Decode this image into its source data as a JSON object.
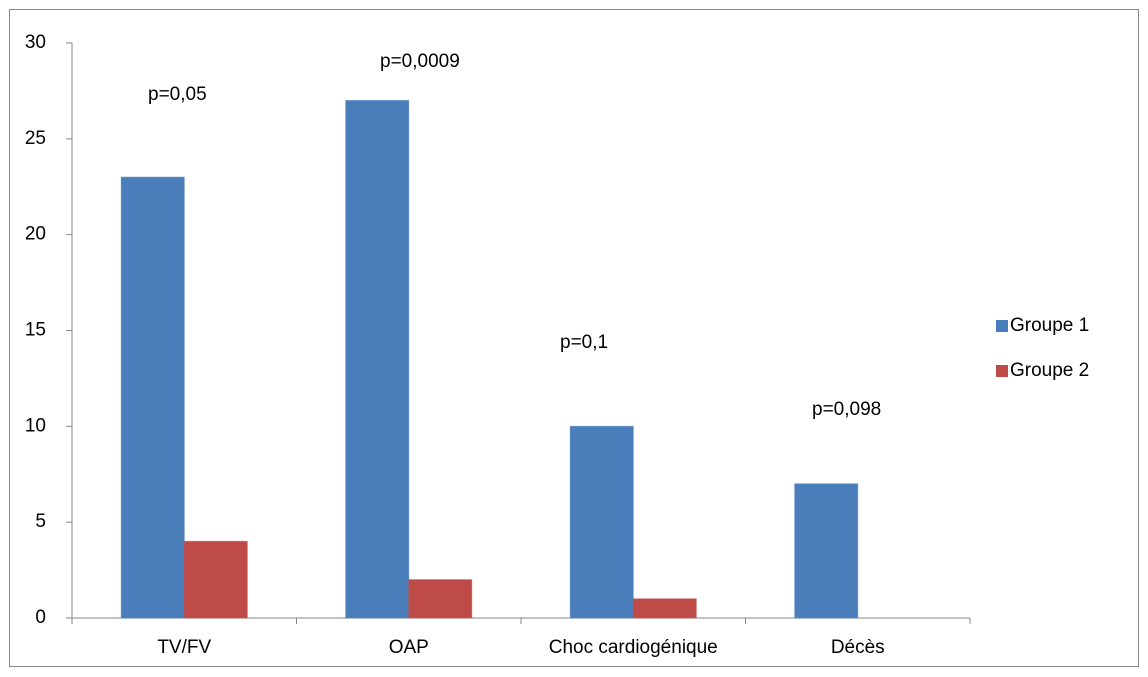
{
  "chart_data": {
    "type": "bar",
    "categories": [
      "TV/FV",
      "OAP",
      "Choc cardiogénique",
      "Décès"
    ],
    "series": [
      {
        "name": "Groupe 1",
        "color": "#4a7ebb",
        "values": [
          23,
          27,
          10,
          7
        ]
      },
      {
        "name": "Groupe 2",
        "color": "#be4b48",
        "values": [
          4,
          2,
          1,
          0
        ]
      }
    ],
    "annotations": [
      "p=0,05",
      "p=0,0009",
      "p=0,1",
      "p=0,098"
    ],
    "ylim": [
      0,
      30
    ],
    "yticks": [
      0,
      5,
      10,
      15,
      20,
      25,
      30
    ],
    "grid": false,
    "legend": "right"
  }
}
